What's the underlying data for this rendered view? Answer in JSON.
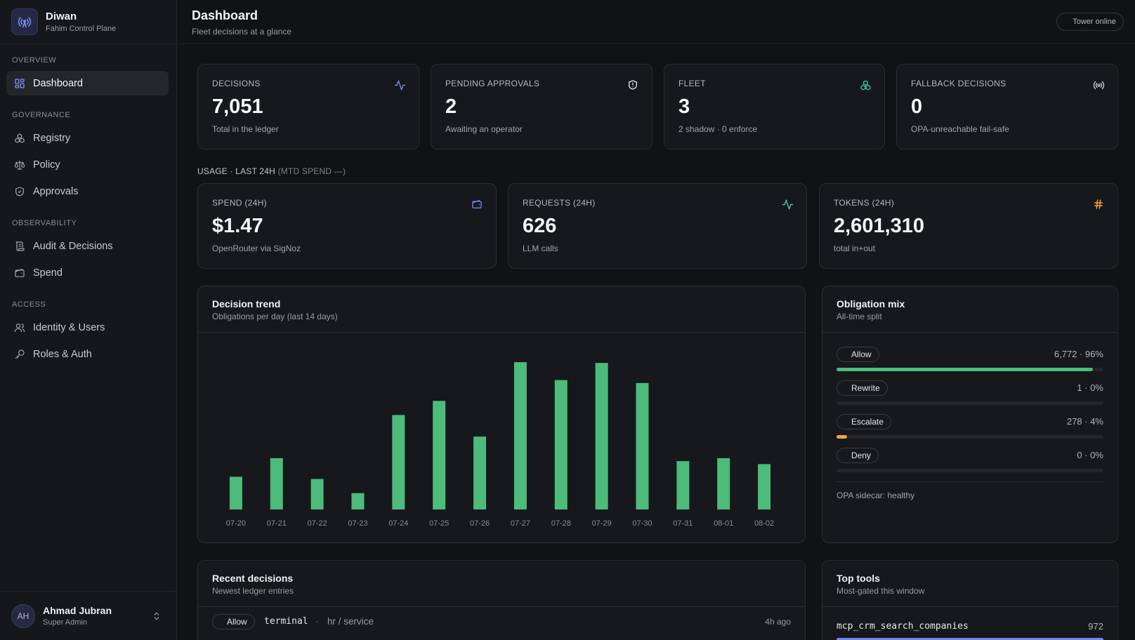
{
  "brand": {
    "name": "Diwan",
    "subtitle": "Fahim Control Plane",
    "logo_icon": "broadcast-tower-icon"
  },
  "nav": {
    "sections": [
      {
        "label": "OVERVIEW",
        "items": [
          {
            "label": "Dashboard",
            "icon": "grid-icon",
            "active": true
          }
        ]
      },
      {
        "label": "GOVERNANCE",
        "items": [
          {
            "label": "Registry",
            "icon": "cubes-icon"
          },
          {
            "label": "Policy",
            "icon": "scale-icon"
          },
          {
            "label": "Approvals",
            "icon": "shield-check-icon"
          }
        ]
      },
      {
        "label": "OBSERVABILITY",
        "items": [
          {
            "label": "Audit & Decisions",
            "icon": "scroll-icon"
          },
          {
            "label": "Spend",
            "icon": "wallet-icon"
          }
        ]
      },
      {
        "label": "ACCESS",
        "items": [
          {
            "label": "Identity & Users",
            "icon": "users-icon"
          },
          {
            "label": "Roles & Auth",
            "icon": "key-icon"
          }
        ]
      }
    ]
  },
  "user": {
    "initials": "AH",
    "name": "Ahmad Jubran",
    "role": "Super Admin"
  },
  "header": {
    "title": "Dashboard",
    "subtitle": "Fleet decisions at a glance",
    "status": "Tower online"
  },
  "stats": [
    {
      "label": "DECISIONS",
      "value": "7,051",
      "sub": "Total in the ledger",
      "icon": "activity-icon",
      "color": "#6f86f0"
    },
    {
      "label": "PENDING APPROVALS",
      "value": "2",
      "sub": "Awaiting an operator",
      "icon": "shield-alert-icon",
      "color": "#e6e7ea"
    },
    {
      "label": "FLEET",
      "value": "3",
      "sub": "2 shadow · 0 enforce",
      "icon": "cubes-icon",
      "color": "#3cc7a8"
    },
    {
      "label": "FALLBACK DECISIONS",
      "value": "0",
      "sub": "OPA-unreachable fail-safe",
      "icon": "radio-icon",
      "color": "#c9cbd0"
    }
  ],
  "usage": {
    "label": "USAGE · LAST 24H",
    "label_muted": "(MTD SPEND —)",
    "cards": [
      {
        "label": "SPEND (24H)",
        "value": "$1.47",
        "sub": "OpenRouter via SigNoz",
        "icon": "wallet-icon",
        "color": "#6f86f0"
      },
      {
        "label": "REQUESTS (24H)",
        "value": "626",
        "sub": "LLM calls",
        "icon": "activity-icon",
        "color": "#3cc7a8"
      },
      {
        "label": "TOKENS (24H)",
        "value": "2,601,310",
        "sub": "total in+out",
        "icon": "hash-icon",
        "color": "#f0a53c"
      }
    ]
  },
  "trend": {
    "title": "Decision trend",
    "subtitle": "Obligations per day (last 14 days)"
  },
  "chart_data": {
    "type": "bar",
    "categories": [
      "07-20",
      "07-21",
      "07-22",
      "07-23",
      "07-24",
      "07-25",
      "07-26",
      "07-27",
      "07-28",
      "07-29",
      "07-30",
      "07-31",
      "08-01",
      "08-02"
    ],
    "values": [
      220,
      345,
      205,
      110,
      635,
      730,
      490,
      990,
      870,
      985,
      850,
      325,
      345,
      305
    ],
    "ylim": [
      0,
      1000
    ],
    "color": "#4cbb7b",
    "grid": false
  },
  "obligations": {
    "title": "Obligation mix",
    "subtitle": "All-time split",
    "rows": [
      {
        "label": "Allow",
        "value": "6,772 · 96%",
        "fraction": 0.96,
        "color": "#4cbb7b"
      },
      {
        "label": "Rewrite",
        "value": "1 · 0%",
        "fraction": 0.0,
        "color": "#6f86f0"
      },
      {
        "label": "Escalate",
        "value": "278 · 4%",
        "fraction": 0.04,
        "color": "#f0a53c"
      },
      {
        "label": "Deny",
        "value": "0 · 0%",
        "fraction": 0.0,
        "color": "#e05a5a"
      }
    ],
    "footer": "OPA sidecar: healthy"
  },
  "recent": {
    "title": "Recent decisions",
    "subtitle": "Newest ledger entries",
    "rows": [
      {
        "badge": "Allow",
        "tool": "terminal",
        "sep": "·",
        "path": "hr / service",
        "time": "4h ago"
      }
    ]
  },
  "top_tools": {
    "title": "Top tools",
    "subtitle": "Most-gated this window",
    "rows": [
      {
        "name": "mcp_crm_search_companies",
        "count": "972",
        "fraction": 1.0
      }
    ]
  }
}
